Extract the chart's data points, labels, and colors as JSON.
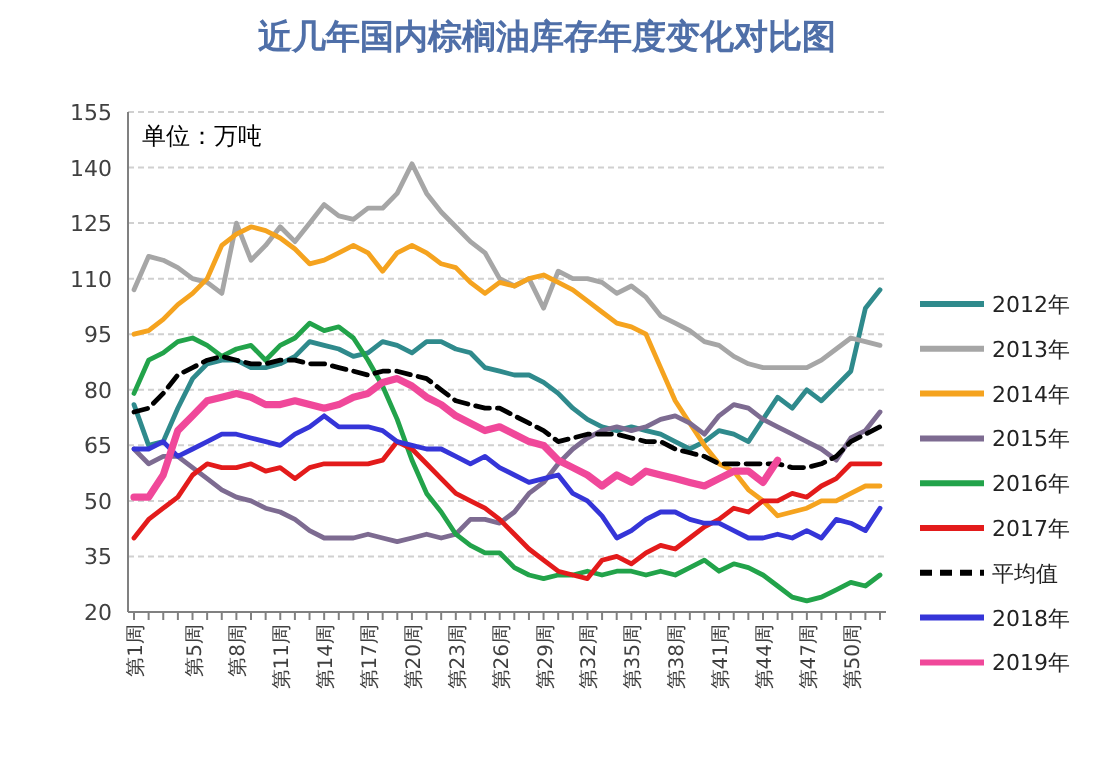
{
  "chart_data": {
    "type": "line",
    "title": "近几年国内棕榈油库存年度变化对比图",
    "annotations": [
      "单位：万吨"
    ],
    "categories": [
      "第1周",
      null,
      null,
      null,
      "第5周",
      null,
      null,
      "第8周",
      null,
      null,
      "第11周",
      null,
      null,
      "第14周",
      null,
      null,
      "第17周",
      null,
      null,
      "第20周",
      null,
      null,
      "第23周",
      null,
      null,
      "第26周",
      null,
      null,
      "第29周",
      null,
      null,
      "第32周",
      null,
      null,
      "第35周",
      null,
      null,
      "第38周",
      null,
      null,
      "第41周",
      null,
      null,
      "第44周",
      null,
      null,
      "第47周",
      null,
      null,
      "第50周",
      null,
      null
    ],
    "ylim": [
      20,
      155
    ],
    "yticks": [
      20,
      35,
      50,
      65,
      80,
      95,
      110,
      125,
      140,
      155
    ],
    "grid": "y",
    "legend": "right",
    "line_style": "solid",
    "marker": "none",
    "series": [
      {
        "name": "2012年",
        "color": "#2f8a8c",
        "values": [
          76,
          65,
          66,
          75,
          83,
          87,
          88,
          88,
          86,
          86,
          87,
          89,
          93,
          92,
          91,
          89,
          90,
          93,
          92,
          90,
          93,
          93,
          91,
          90,
          86,
          85,
          84,
          84,
          82,
          79,
          75,
          72,
          70,
          69,
          70,
          69,
          68,
          66,
          64,
          66,
          69,
          68,
          66,
          72,
          78,
          75,
          80,
          77,
          81,
          85,
          102,
          107
        ]
      },
      {
        "name": "2013年",
        "color": "#a6a6a6",
        "values": [
          107,
          116,
          115,
          113,
          110,
          109,
          106,
          125,
          115,
          119,
          124,
          120,
          125,
          130,
          127,
          126,
          129,
          129,
          133,
          141,
          133,
          128,
          124,
          120,
          117,
          110,
          108,
          110,
          102,
          112,
          110,
          110,
          109,
          106,
          108,
          105,
          100,
          98,
          96,
          93,
          92,
          89,
          87,
          86,
          86,
          86,
          86,
          88,
          91,
          94,
          93,
          92
        ]
      },
      {
        "name": "2014年",
        "color": "#f5a31f",
        "values": [
          95,
          96,
          99,
          103,
          106,
          110,
          119,
          122,
          124,
          123,
          121,
          118,
          114,
          115,
          117,
          119,
          117,
          112,
          117,
          119,
          117,
          114,
          113,
          109,
          106,
          109,
          108,
          110,
          111,
          109,
          107,
          104,
          101,
          98,
          97,
          95,
          86,
          77,
          71,
          65,
          60,
          58,
          53,
          50,
          46,
          47,
          48,
          50,
          50,
          52,
          54,
          54
        ]
      },
      {
        "name": "2015年",
        "color": "#7d6b91",
        "values": [
          64,
          60,
          62,
          62,
          59,
          56,
          53,
          51,
          50,
          48,
          47,
          45,
          42,
          40,
          40,
          40,
          41,
          40,
          39,
          40,
          41,
          40,
          41,
          45,
          45,
          44,
          47,
          52,
          55,
          60,
          64,
          67,
          69,
          70,
          69,
          70,
          72,
          73,
          71,
          68,
          73,
          76,
          75,
          72,
          70,
          68,
          66,
          64,
          61,
          67,
          69,
          74
        ]
      },
      {
        "name": "2016年",
        "color": "#22a34a",
        "values": [
          79,
          88,
          90,
          93,
          94,
          92,
          89,
          91,
          92,
          88,
          92,
          94,
          98,
          96,
          97,
          94,
          88,
          81,
          72,
          61,
          52,
          47,
          41,
          38,
          36,
          36,
          32,
          30,
          29,
          30,
          30,
          31,
          30,
          31,
          31,
          30,
          31,
          30,
          32,
          34,
          31,
          33,
          32,
          30,
          27,
          24,
          23,
          24,
          26,
          28,
          27,
          30
        ]
      },
      {
        "name": "2017年",
        "color": "#e31b1b",
        "values": [
          40,
          45,
          48,
          51,
          57,
          60,
          59,
          59,
          60,
          58,
          59,
          56,
          59,
          60,
          60,
          60,
          60,
          61,
          66,
          64,
          60,
          56,
          52,
          50,
          48,
          45,
          41,
          37,
          34,
          31,
          30,
          29,
          34,
          35,
          33,
          36,
          38,
          37,
          40,
          43,
          45,
          48,
          47,
          50,
          50,
          52,
          51,
          54,
          56,
          60,
          60,
          60
        ]
      },
      {
        "name": "平均值",
        "color": "#000000",
        "line_style": "dashed",
        "values": [
          74,
          75,
          79,
          84,
          86,
          88,
          89,
          88,
          87,
          87,
          88,
          88,
          87,
          87,
          86,
          85,
          84,
          85,
          85,
          84,
          83,
          80,
          77,
          76,
          75,
          75,
          73,
          71,
          69,
          66,
          67,
          68,
          68,
          68,
          67,
          66,
          66,
          64,
          63,
          62,
          60,
          60,
          60,
          60,
          60,
          59,
          59,
          60,
          62,
          66,
          68,
          70
        ]
      },
      {
        "name": "2018年",
        "color": "#3535d8",
        "values": [
          64,
          64,
          66,
          62,
          64,
          66,
          68,
          68,
          67,
          66,
          65,
          68,
          70,
          73,
          70,
          70,
          70,
          69,
          66,
          65,
          64,
          64,
          62,
          60,
          62,
          59,
          57,
          55,
          56,
          57,
          52,
          50,
          46,
          40,
          42,
          45,
          47,
          47,
          45,
          44,
          44,
          42,
          40,
          40,
          41,
          40,
          42,
          40,
          45,
          44,
          42,
          48
        ]
      },
      {
        "name": "2019年",
        "color": "#f0489a",
        "values": [
          51,
          51,
          57,
          69,
          73,
          77,
          78,
          79,
          78,
          76,
          76,
          77,
          76,
          75,
          76,
          78,
          79,
          82,
          83,
          81,
          78,
          76,
          73,
          71,
          69,
          70,
          68,
          66,
          65,
          61,
          59,
          57,
          54,
          57,
          55,
          58,
          57,
          56,
          55,
          54,
          56,
          58,
          58,
          55,
          61,
          null,
          null,
          null,
          null,
          null,
          null,
          null
        ]
      }
    ]
  }
}
